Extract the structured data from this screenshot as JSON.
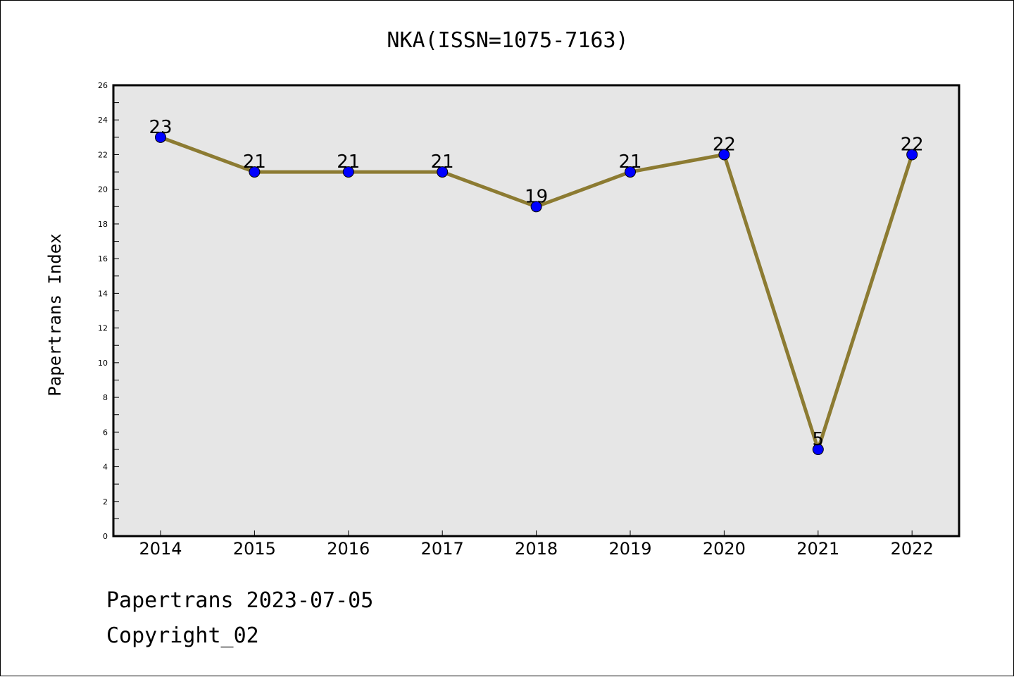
{
  "chart_data": {
    "type": "line",
    "title": "NKA(ISSN=1075-7163)",
    "xlabel": "",
    "ylabel": "Papertrans Index",
    "categories": [
      "2014",
      "2015",
      "2016",
      "2017",
      "2018",
      "2019",
      "2020",
      "2021",
      "2022"
    ],
    "series": [
      {
        "values": [
          23,
          21,
          21,
          21,
          19,
          21,
          22,
          5,
          22
        ]
      }
    ],
    "ylim": [
      0,
      26
    ],
    "yticks": [
      0,
      2,
      4,
      6,
      8,
      10,
      12,
      14,
      16,
      18,
      20,
      22,
      24,
      26
    ],
    "data_labels": true,
    "grid": false,
    "colors": {
      "line": "#8c7b32",
      "marker": "#0000ff",
      "plot_background": "#e6e6e6"
    }
  },
  "footer": {
    "line1": "Papertrans 2023-07-05",
    "line2": "Copyright_02"
  }
}
